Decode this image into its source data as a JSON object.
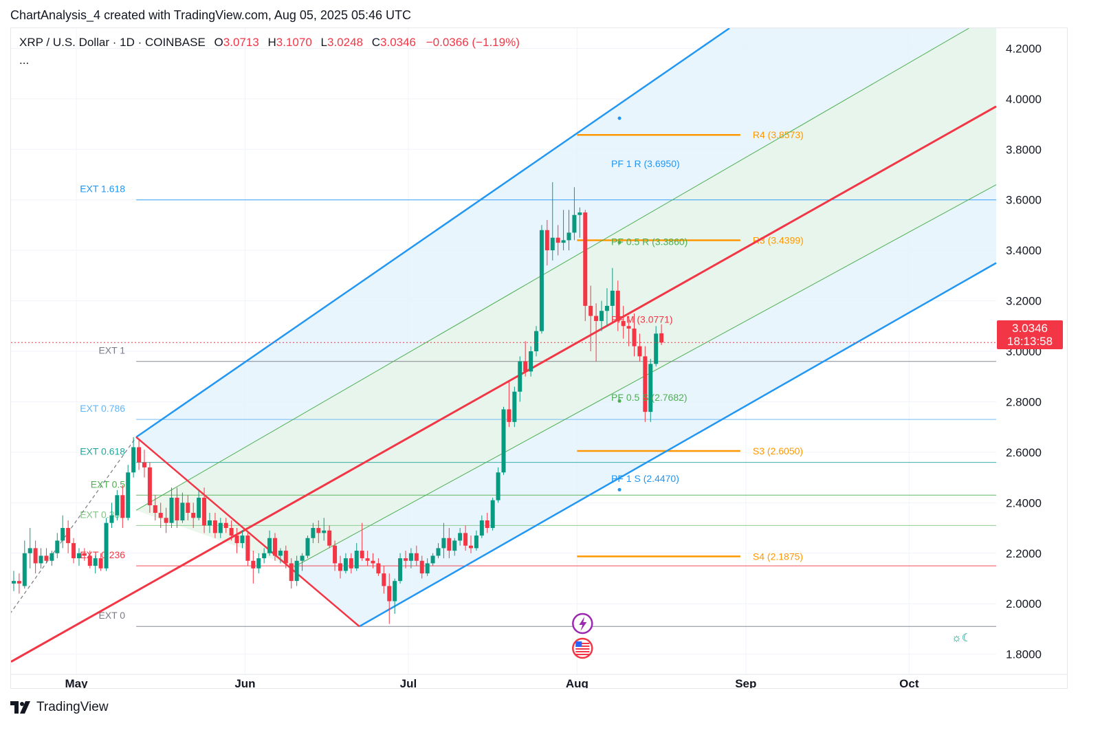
{
  "header": {
    "caption": "ChartAnalysis_4 created with TradingView.com, Aug 05, 2025 05:46 UTC"
  },
  "legend": {
    "symbol": "XRP / U.S. Dollar · 1D · COINBASE",
    "open_label": "O",
    "open": "3.0713",
    "high_label": "H",
    "high": "3.1070",
    "low_label": "L",
    "low": "3.0248",
    "close_label": "C",
    "close": "3.0346",
    "change": "−0.0366 (−1.19%)",
    "more": "..."
  },
  "price_tag": {
    "price": "3.0346",
    "countdown": "18:13:58"
  },
  "footer": {
    "brand": "TradingView"
  },
  "colors": {
    "up": "#089981",
    "down": "#f23645",
    "channel_blue": "#2196f3",
    "channel_fill": "#e3f2fd",
    "inner_fill": "#e8f5e9",
    "median": "#f23645",
    "pivot": "#ff9800",
    "inner_line": "#4caf50"
  },
  "icons": {
    "events": [
      "lightning-event-icon",
      "us-flag-event-icon"
    ],
    "theme": "sun-moon-icon"
  },
  "chart_data": {
    "type": "candlestick",
    "y_axis": {
      "min": 1.72,
      "max": 4.28,
      "ticks": [
        "4.2000",
        "4.0000",
        "3.8000",
        "3.6000",
        "3.4000",
        "3.2000",
        "3.0000",
        "2.8000",
        "2.6000",
        "2.4000",
        "2.2000",
        "2.0000",
        "1.8000"
      ]
    },
    "x_axis": {
      "start": "2025-04-19",
      "end": "2025-10-17",
      "ticks": [
        {
          "date": "2025-05-01",
          "label": "May"
        },
        {
          "date": "2025-06-01",
          "label": "Jun"
        },
        {
          "date": "2025-07-01",
          "label": "Jul"
        },
        {
          "date": "2025-08-01",
          "label": "Aug"
        },
        {
          "date": "2025-09-01",
          "label": "Sep"
        },
        {
          "date": "2025-10-01",
          "label": "Oct"
        }
      ]
    },
    "last_price": 3.0346,
    "candles": [
      {
        "o": 2.08,
        "h": 2.13,
        "l": 2.05,
        "c": 2.09
      },
      {
        "o": 2.09,
        "h": 2.12,
        "l": 2.04,
        "c": 2.08
      },
      {
        "o": 2.07,
        "h": 2.25,
        "l": 2.06,
        "c": 2.2
      },
      {
        "o": 2.2,
        "h": 2.3,
        "l": 2.14,
        "c": 2.22
      },
      {
        "o": 2.22,
        "h": 2.25,
        "l": 2.12,
        "c": 2.16
      },
      {
        "o": 2.16,
        "h": 2.22,
        "l": 2.14,
        "c": 2.19
      },
      {
        "o": 2.19,
        "h": 2.22,
        "l": 2.16,
        "c": 2.17
      },
      {
        "o": 2.17,
        "h": 2.21,
        "l": 2.15,
        "c": 2.2
      },
      {
        "o": 2.2,
        "h": 2.28,
        "l": 2.18,
        "c": 2.25
      },
      {
        "o": 2.25,
        "h": 2.35,
        "l": 2.22,
        "c": 2.3
      },
      {
        "o": 2.3,
        "h": 2.33,
        "l": 2.2,
        "c": 2.24
      },
      {
        "o": 2.24,
        "h": 2.26,
        "l": 2.16,
        "c": 2.18
      },
      {
        "o": 2.18,
        "h": 2.22,
        "l": 2.15,
        "c": 2.2
      },
      {
        "o": 2.2,
        "h": 2.22,
        "l": 2.17,
        "c": 2.19
      },
      {
        "o": 2.19,
        "h": 2.21,
        "l": 2.14,
        "c": 2.15
      },
      {
        "o": 2.15,
        "h": 2.19,
        "l": 2.12,
        "c": 2.18
      },
      {
        "o": 2.18,
        "h": 2.2,
        "l": 2.13,
        "c": 2.14
      },
      {
        "o": 2.14,
        "h": 2.34,
        "l": 2.13,
        "c": 2.32
      },
      {
        "o": 2.32,
        "h": 2.4,
        "l": 2.3,
        "c": 2.35
      },
      {
        "o": 2.35,
        "h": 2.45,
        "l": 2.33,
        "c": 2.43
      },
      {
        "o": 2.43,
        "h": 2.47,
        "l": 2.3,
        "c": 2.34
      },
      {
        "o": 2.34,
        "h": 2.55,
        "l": 2.33,
        "c": 2.52
      },
      {
        "o": 2.52,
        "h": 2.66,
        "l": 2.5,
        "c": 2.62
      },
      {
        "o": 2.62,
        "h": 2.65,
        "l": 2.53,
        "c": 2.56
      },
      {
        "o": 2.56,
        "h": 2.61,
        "l": 2.5,
        "c": 2.54
      },
      {
        "o": 2.54,
        "h": 2.56,
        "l": 2.36,
        "c": 2.39
      },
      {
        "o": 2.39,
        "h": 2.43,
        "l": 2.33,
        "c": 2.36
      },
      {
        "o": 2.36,
        "h": 2.4,
        "l": 2.3,
        "c": 2.34
      },
      {
        "o": 2.34,
        "h": 2.38,
        "l": 2.28,
        "c": 2.32
      },
      {
        "o": 2.32,
        "h": 2.46,
        "l": 2.3,
        "c": 2.42
      },
      {
        "o": 2.42,
        "h": 2.46,
        "l": 2.3,
        "c": 2.33
      },
      {
        "o": 2.33,
        "h": 2.44,
        "l": 2.32,
        "c": 2.4
      },
      {
        "o": 2.4,
        "h": 2.43,
        "l": 2.33,
        "c": 2.36
      },
      {
        "o": 2.36,
        "h": 2.4,
        "l": 2.3,
        "c": 2.34
      },
      {
        "o": 2.34,
        "h": 2.45,
        "l": 2.33,
        "c": 2.42
      },
      {
        "o": 2.42,
        "h": 2.46,
        "l": 2.28,
        "c": 2.31
      },
      {
        "o": 2.31,
        "h": 2.36,
        "l": 2.28,
        "c": 2.33
      },
      {
        "o": 2.33,
        "h": 2.36,
        "l": 2.26,
        "c": 2.28
      },
      {
        "o": 2.28,
        "h": 2.34,
        "l": 2.26,
        "c": 2.32
      },
      {
        "o": 2.32,
        "h": 2.34,
        "l": 2.28,
        "c": 2.3
      },
      {
        "o": 2.3,
        "h": 2.33,
        "l": 2.25,
        "c": 2.27
      },
      {
        "o": 2.27,
        "h": 2.3,
        "l": 2.2,
        "c": 2.24
      },
      {
        "o": 2.24,
        "h": 2.29,
        "l": 2.22,
        "c": 2.27
      },
      {
        "o": 2.27,
        "h": 2.28,
        "l": 2.15,
        "c": 2.17
      },
      {
        "o": 2.17,
        "h": 2.21,
        "l": 2.08,
        "c": 2.14
      },
      {
        "o": 2.14,
        "h": 2.2,
        "l": 2.12,
        "c": 2.18
      },
      {
        "o": 2.18,
        "h": 2.22,
        "l": 2.16,
        "c": 2.2
      },
      {
        "o": 2.2,
        "h": 2.29,
        "l": 2.19,
        "c": 2.26
      },
      {
        "o": 2.26,
        "h": 2.28,
        "l": 2.17,
        "c": 2.19
      },
      {
        "o": 2.19,
        "h": 2.22,
        "l": 2.16,
        "c": 2.21
      },
      {
        "o": 2.21,
        "h": 2.23,
        "l": 2.14,
        "c": 2.16
      },
      {
        "o": 2.16,
        "h": 2.18,
        "l": 2.06,
        "c": 2.09
      },
      {
        "o": 2.09,
        "h": 2.19,
        "l": 2.07,
        "c": 2.17
      },
      {
        "o": 2.17,
        "h": 2.2,
        "l": 2.13,
        "c": 2.19
      },
      {
        "o": 2.19,
        "h": 2.27,
        "l": 2.18,
        "c": 2.26
      },
      {
        "o": 2.26,
        "h": 2.32,
        "l": 2.24,
        "c": 2.3
      },
      {
        "o": 2.3,
        "h": 2.33,
        "l": 2.24,
        "c": 2.28
      },
      {
        "o": 2.28,
        "h": 2.34,
        "l": 2.25,
        "c": 2.29
      },
      {
        "o": 2.29,
        "h": 2.31,
        "l": 2.22,
        "c": 2.23
      },
      {
        "o": 2.23,
        "h": 2.25,
        "l": 2.13,
        "c": 2.16
      },
      {
        "o": 2.16,
        "h": 2.19,
        "l": 2.1,
        "c": 2.13
      },
      {
        "o": 2.13,
        "h": 2.2,
        "l": 2.12,
        "c": 2.18
      },
      {
        "o": 2.18,
        "h": 2.2,
        "l": 2.12,
        "c": 2.14
      },
      {
        "o": 2.14,
        "h": 2.24,
        "l": 2.13,
        "c": 2.21
      },
      {
        "o": 2.21,
        "h": 2.32,
        "l": 2.17,
        "c": 2.18
      },
      {
        "o": 2.18,
        "h": 2.21,
        "l": 2.15,
        "c": 2.17
      },
      {
        "o": 2.17,
        "h": 2.2,
        "l": 2.14,
        "c": 2.16
      },
      {
        "o": 2.16,
        "h": 2.18,
        "l": 2.11,
        "c": 2.12
      },
      {
        "o": 2.12,
        "h": 2.15,
        "l": 2.04,
        "c": 2.07
      },
      {
        "o": 2.07,
        "h": 2.12,
        "l": 1.92,
        "c": 2.01
      },
      {
        "o": 2.01,
        "h": 2.1,
        "l": 1.96,
        "c": 2.09
      },
      {
        "o": 2.09,
        "h": 2.2,
        "l": 2.08,
        "c": 2.18
      },
      {
        "o": 2.18,
        "h": 2.21,
        "l": 2.14,
        "c": 2.17
      },
      {
        "o": 2.17,
        "h": 2.22,
        "l": 2.14,
        "c": 2.2
      },
      {
        "o": 2.2,
        "h": 2.23,
        "l": 2.15,
        "c": 2.17
      },
      {
        "o": 2.17,
        "h": 2.19,
        "l": 2.1,
        "c": 2.12
      },
      {
        "o": 2.12,
        "h": 2.18,
        "l": 2.11,
        "c": 2.16
      },
      {
        "o": 2.16,
        "h": 2.2,
        "l": 2.15,
        "c": 2.19
      },
      {
        "o": 2.19,
        "h": 2.24,
        "l": 2.18,
        "c": 2.22
      },
      {
        "o": 2.22,
        "h": 2.32,
        "l": 2.18,
        "c": 2.26
      },
      {
        "o": 2.26,
        "h": 2.3,
        "l": 2.18,
        "c": 2.21
      },
      {
        "o": 2.21,
        "h": 2.26,
        "l": 2.19,
        "c": 2.25
      },
      {
        "o": 2.25,
        "h": 2.3,
        "l": 2.23,
        "c": 2.28
      },
      {
        "o": 2.28,
        "h": 2.31,
        "l": 2.21,
        "c": 2.23
      },
      {
        "o": 2.23,
        "h": 2.27,
        "l": 2.2,
        "c": 2.22
      },
      {
        "o": 2.22,
        "h": 2.29,
        "l": 2.21,
        "c": 2.27
      },
      {
        "o": 2.27,
        "h": 2.35,
        "l": 2.26,
        "c": 2.33
      },
      {
        "o": 2.33,
        "h": 2.36,
        "l": 2.28,
        "c": 2.3
      },
      {
        "o": 2.3,
        "h": 2.42,
        "l": 2.29,
        "c": 2.41
      },
      {
        "o": 2.41,
        "h": 2.54,
        "l": 2.4,
        "c": 2.52
      },
      {
        "o": 2.52,
        "h": 2.78,
        "l": 2.51,
        "c": 2.77
      },
      {
        "o": 2.77,
        "h": 2.88,
        "l": 2.7,
        "c": 2.72
      },
      {
        "o": 2.72,
        "h": 2.86,
        "l": 2.7,
        "c": 2.84
      },
      {
        "o": 2.84,
        "h": 2.98,
        "l": 2.8,
        "c": 2.96
      },
      {
        "o": 2.96,
        "h": 3.04,
        "l": 2.9,
        "c": 2.92
      },
      {
        "o": 2.92,
        "h": 3.02,
        "l": 2.9,
        "c": 3.0
      },
      {
        "o": 3.0,
        "h": 3.1,
        "l": 2.98,
        "c": 3.08
      },
      {
        "o": 3.08,
        "h": 3.5,
        "l": 3.07,
        "c": 3.48
      },
      {
        "o": 3.48,
        "h": 3.52,
        "l": 3.34,
        "c": 3.4
      },
      {
        "o": 3.4,
        "h": 3.67,
        "l": 3.36,
        "c": 3.45
      },
      {
        "o": 3.45,
        "h": 3.5,
        "l": 3.38,
        "c": 3.43
      },
      {
        "o": 3.43,
        "h": 3.56,
        "l": 3.4,
        "c": 3.44
      },
      {
        "o": 3.44,
        "h": 3.56,
        "l": 3.4,
        "c": 3.47
      },
      {
        "o": 3.47,
        "h": 3.65,
        "l": 3.44,
        "c": 3.54
      },
      {
        "o": 3.54,
        "h": 3.57,
        "l": 3.45,
        "c": 3.55
      },
      {
        "o": 3.55,
        "h": 3.56,
        "l": 3.12,
        "c": 3.18
      },
      {
        "o": 3.18,
        "h": 3.26,
        "l": 3.0,
        "c": 3.14
      },
      {
        "o": 3.14,
        "h": 3.19,
        "l": 2.96,
        "c": 3.12
      },
      {
        "o": 3.12,
        "h": 3.2,
        "l": 3.08,
        "c": 3.16
      },
      {
        "o": 3.16,
        "h": 3.25,
        "l": 3.1,
        "c": 3.18
      },
      {
        "o": 3.18,
        "h": 3.33,
        "l": 3.12,
        "c": 3.24
      },
      {
        "o": 3.24,
        "h": 3.28,
        "l": 3.08,
        "c": 3.12
      },
      {
        "o": 3.12,
        "h": 3.18,
        "l": 3.05,
        "c": 3.1
      },
      {
        "o": 3.1,
        "h": 3.14,
        "l": 3.02,
        "c": 3.09
      },
      {
        "o": 3.09,
        "h": 3.15,
        "l": 2.98,
        "c": 3.02
      },
      {
        "o": 3.02,
        "h": 3.07,
        "l": 2.96,
        "c": 2.98
      },
      {
        "o": 2.98,
        "h": 3.02,
        "l": 2.72,
        "c": 2.76
      },
      {
        "o": 2.76,
        "h": 2.97,
        "l": 2.72,
        "c": 2.95
      },
      {
        "o": 2.95,
        "h": 3.1,
        "l": 2.94,
        "c": 3.07
      },
      {
        "o": 3.0713,
        "h": 3.107,
        "l": 3.0248,
        "c": 3.0346
      }
    ],
    "channel": {
      "upper": [
        {
          "date": "2025-05-12",
          "y": 2.66
        },
        {
          "date": "2025-08-29",
          "y": 4.28
        }
      ],
      "upper_inner": [
        {
          "date": "2025-05-12",
          "y": 2.37
        },
        {
          "date": "2025-10-12",
          "y": 4.28
        }
      ],
      "median": [
        {
          "date": "2025-04-19",
          "y": 1.77
        },
        {
          "date": "2025-10-17",
          "y": 3.97
        }
      ],
      "lower_inner": [
        {
          "date": "2025-06-01",
          "y": 2.04
        },
        {
          "date": "2025-10-17",
          "y": 3.66
        }
      ],
      "lower": [
        {
          "date": "2025-06-22",
          "y": 1.91
        },
        {
          "date": "2025-10-17",
          "y": 3.35
        }
      ],
      "anchor_a": {
        "date": "2025-05-12",
        "y": 2.66
      },
      "anchor_b": {
        "date": "2025-06-22",
        "y": 1.91
      },
      "fan_start": {
        "date": "2025-04-19",
        "y": 2.03
      }
    },
    "fib_ext": [
      {
        "label": "EXT 1.618",
        "value": 3.6,
        "color": "#2196f3"
      },
      {
        "label": "EXT 1",
        "value": 2.96,
        "color": "#787b86"
      },
      {
        "label": "EXT 0.786",
        "value": 2.73,
        "color": "#64b5f6"
      },
      {
        "label": "EXT 0.618",
        "value": 2.56,
        "color": "#26a69a"
      },
      {
        "label": "EXT 0.5",
        "value": 2.43,
        "color": "#4caf50"
      },
      {
        "label": "EXT 0.382",
        "value": 2.31,
        "color": "#81c784"
      },
      {
        "label": "EXT 0.236",
        "value": 2.15,
        "color": "#f23645"
      },
      {
        "label": "EXT 0",
        "value": 1.91,
        "color": "#787b86"
      }
    ],
    "ext_start": "2025-05-12",
    "pivots": [
      {
        "label": "R4 (3.8573)",
        "value": 3.8573
      },
      {
        "label": "R3 (3.4399)",
        "value": 3.4399
      },
      {
        "label": "S3 (2.6050)",
        "value": 2.605
      },
      {
        "label": "S4 (2.1875)",
        "value": 2.1875
      }
    ],
    "pivot_range": [
      "2025-08-01",
      "2025-08-31"
    ],
    "pf_labels": [
      {
        "label": "PF 1 R (3.6950)",
        "value": 3.695,
        "color": "#2196f3"
      },
      {
        "label": "PF 0.5 R (3.3860)",
        "value": 3.386,
        "color": "#4caf50"
      },
      {
        "label": "PF M (3.0771)",
        "value": 3.0771,
        "color": "#f23645"
      },
      {
        "label": "PF 0.5 S (2.7682)",
        "value": 2.7682,
        "color": "#4caf50"
      },
      {
        "label": "PF 1 S (2.4470)",
        "value": 2.447,
        "color": "#2196f3"
      }
    ],
    "pf_date": "2025-08-05"
  }
}
